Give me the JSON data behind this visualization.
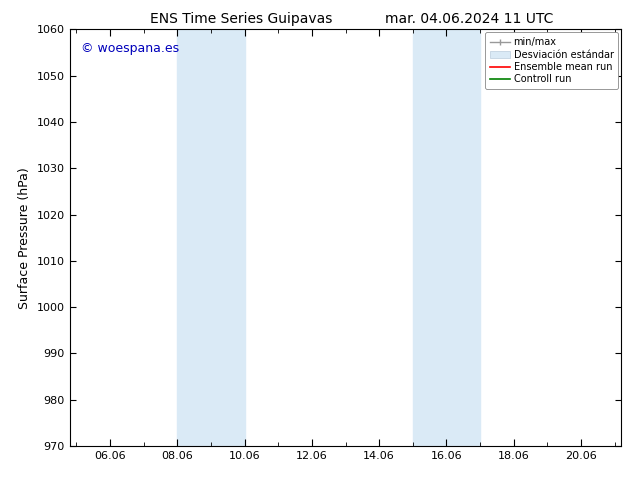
{
  "title_left": "ENS Time Series Guipavas",
  "title_right": "mar. 04.06.2024 11 UTC",
  "ylabel": "Surface Pressure (hPa)",
  "ylim": [
    970,
    1060
  ],
  "yticks": [
    970,
    980,
    990,
    1000,
    1010,
    1020,
    1030,
    1040,
    1050,
    1060
  ],
  "xlim_start": 4.8,
  "xlim_end": 21.2,
  "xtick_labels": [
    "06.06",
    "08.06",
    "10.06",
    "12.06",
    "14.06",
    "16.06",
    "18.06",
    "20.06"
  ],
  "xtick_positions": [
    6.0,
    8.0,
    10.0,
    12.0,
    14.0,
    16.0,
    18.0,
    20.0
  ],
  "shaded_regions": [
    {
      "xmin": 8.0,
      "xmax": 10.0,
      "color": "#daeaf6"
    },
    {
      "xmin": 15.0,
      "xmax": 17.0,
      "color": "#daeaf6"
    }
  ],
  "watermark_text": "© woespana.es",
  "watermark_color": "#0000bb",
  "background_color": "#ffffff",
  "legend_label_minmax": "min/max",
  "legend_label_desv": "Desviación estándar",
  "legend_label_ensemble": "Ensemble mean run",
  "legend_label_control": "Controll run",
  "title_fontsize": 10,
  "tick_fontsize": 8,
  "ylabel_fontsize": 9,
  "watermark_fontsize": 9,
  "legend_fontsize": 7
}
